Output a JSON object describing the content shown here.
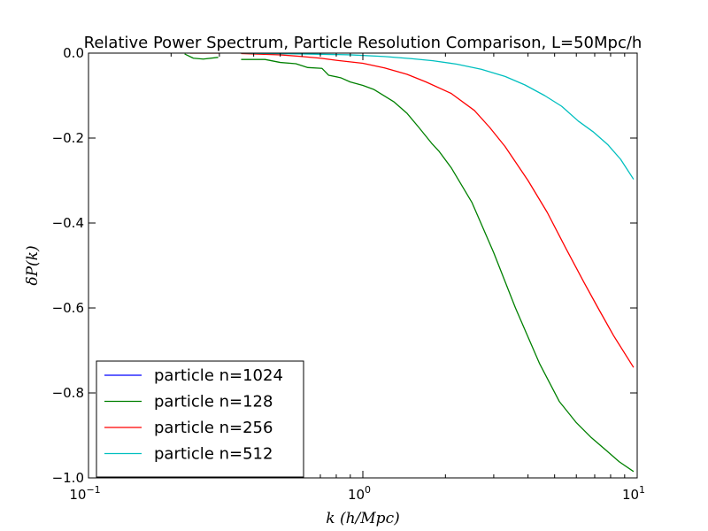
{
  "chart_data": {
    "type": "line",
    "title": "Relative Power Spectrum, Particle Resolution Comparison, L=50Mpc/h",
    "xlabel": "k (h/Mpc)",
    "ylabel": "δP(k)",
    "xscale": "log",
    "xlim": [
      0.1,
      10
    ],
    "ylim": [
      -1.0,
      0.0
    ],
    "grid": false,
    "legend_position": "lower-left",
    "x_ticks": [
      {
        "value": 0.1,
        "base": "10",
        "exp": "−1"
      },
      {
        "value": 1,
        "base": "10",
        "exp": "0"
      },
      {
        "value": 10,
        "base": "10",
        "exp": "1"
      }
    ],
    "y_ticks": [
      {
        "value": 0.0,
        "label": "0.0"
      },
      {
        "value": -0.2,
        "label": "−0.2"
      },
      {
        "value": -0.4,
        "label": "−0.4"
      },
      {
        "value": -0.6,
        "label": "−0.6"
      },
      {
        "value": -0.8,
        "label": "−0.8"
      },
      {
        "value": -1.0,
        "label": "−1.0"
      }
    ],
    "series": [
      {
        "name": "particle n=1024",
        "color": "#0000ff",
        "points": []
      },
      {
        "name": "particle n=128",
        "color": "#008000",
        "points": [
          [
            0.224,
            -0.002
          ],
          [
            0.241,
            -0.012
          ],
          [
            0.262,
            -0.014
          ],
          [
            0.297,
            -0.01
          ],
          null,
          [
            0.36,
            -0.015
          ],
          [
            0.44,
            -0.015
          ],
          [
            0.5,
            -0.022
          ],
          [
            0.57,
            -0.025
          ],
          [
            0.63,
            -0.034
          ],
          [
            0.71,
            -0.036
          ],
          [
            0.75,
            -0.052
          ],
          [
            0.83,
            -0.058
          ],
          [
            0.9,
            -0.068
          ],
          [
            1.0,
            -0.076
          ],
          [
            1.1,
            -0.086
          ],
          [
            1.3,
            -0.115
          ],
          [
            1.45,
            -0.142
          ],
          [
            1.6,
            -0.175
          ],
          [
            1.78,
            -0.212
          ],
          [
            1.9,
            -0.232
          ],
          [
            2.1,
            -0.27
          ],
          [
            2.5,
            -0.352
          ],
          [
            3.0,
            -0.47
          ],
          [
            3.6,
            -0.6
          ],
          [
            4.4,
            -0.73
          ],
          [
            5.2,
            -0.82
          ],
          [
            6.0,
            -0.87
          ],
          [
            6.8,
            -0.905
          ],
          [
            7.7,
            -0.935
          ],
          [
            8.6,
            -0.962
          ],
          [
            9.7,
            -0.985
          ]
        ]
      },
      {
        "name": "particle n=256",
        "color": "#ff0000",
        "points": [
          [
            0.235,
            0.0
          ],
          [
            0.3,
            0.0
          ],
          null,
          [
            0.36,
            -0.001
          ],
          [
            0.5,
            -0.004
          ],
          [
            0.6,
            -0.008
          ],
          [
            0.7,
            -0.012
          ],
          [
            0.8,
            -0.017
          ],
          [
            1.0,
            -0.024
          ],
          [
            1.2,
            -0.035
          ],
          [
            1.45,
            -0.05
          ],
          [
            1.7,
            -0.068
          ],
          [
            2.1,
            -0.095
          ],
          [
            2.55,
            -0.135
          ],
          [
            2.9,
            -0.175
          ],
          [
            3.3,
            -0.22
          ],
          [
            4.0,
            -0.3
          ],
          [
            4.7,
            -0.375
          ],
          [
            5.5,
            -0.46
          ],
          [
            6.4,
            -0.54
          ],
          [
            7.2,
            -0.6
          ],
          [
            8.2,
            -0.665
          ],
          [
            9.7,
            -0.74
          ]
        ]
      },
      {
        "name": "particle n=512",
        "color": "#00bfbf",
        "points": [
          [
            0.36,
            0.0
          ],
          [
            0.6,
            -0.002
          ],
          [
            0.9,
            -0.004
          ],
          [
            1.2,
            -0.008
          ],
          [
            1.5,
            -0.013
          ],
          [
            1.8,
            -0.018
          ],
          [
            2.2,
            -0.026
          ],
          [
            2.7,
            -0.038
          ],
          [
            3.3,
            -0.055
          ],
          [
            3.9,
            -0.075
          ],
          [
            4.6,
            -0.1
          ],
          [
            5.3,
            -0.125
          ],
          [
            6.1,
            -0.16
          ],
          [
            6.9,
            -0.185
          ],
          [
            7.8,
            -0.215
          ],
          [
            8.7,
            -0.25
          ],
          [
            9.7,
            -0.297
          ]
        ]
      }
    ]
  }
}
